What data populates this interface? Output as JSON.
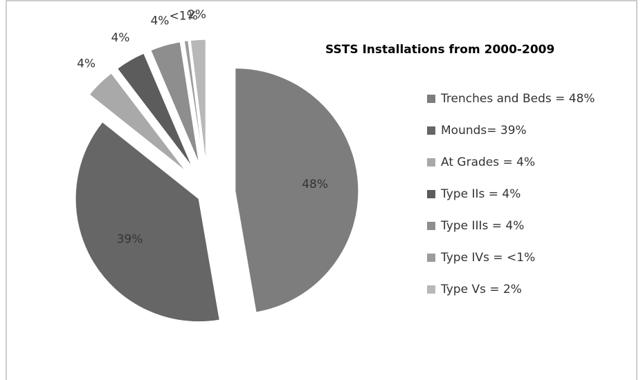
{
  "chart_data": {
    "type": "pie",
    "title": "SSTS Installations from 2000-2009",
    "categories": [
      "Trenches and Beds = 48%",
      "Mounds= 39%",
      "At Grades = 4%",
      "Type IIs = 4%",
      "Type IIIs = 4%",
      "Type IVs = <1%",
      "Type Vs = 2%"
    ],
    "values": [
      48,
      39,
      4,
      4,
      4,
      0.5,
      2
    ],
    "value_labels": [
      "48%",
      "39%",
      "4%",
      "4%",
      "4%",
      "<1%",
      "2%"
    ],
    "colors": [
      "#7d7d7d",
      "#666666",
      "#a9a9a9",
      "#5c5c5c",
      "#8e8e8e",
      "#9c9c9c",
      "#b8b8b8"
    ],
    "legend": "right"
  }
}
